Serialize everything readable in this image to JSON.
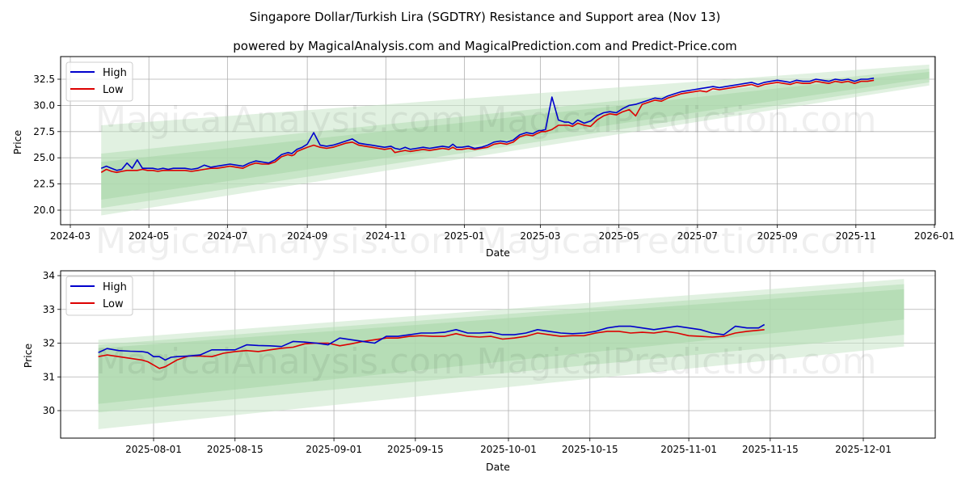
{
  "header": {
    "title": "Singapore Dollar/Turkish Lira (SGDTRY) Resistance and Support area (Nov 13)",
    "subtitle": "powered by MagicalAnalysis.com and MagicalPrediction.com and Predict-Price.com"
  },
  "watermarks": [
    "MagicalAnalysis.com",
    "MagicalPrediction.com"
  ],
  "colors": {
    "high": "#0000cc",
    "low": "#dd0000",
    "band_light": "#c8e6c8",
    "band_dark": "#a8d5a8",
    "grid": "#b0b0b0"
  },
  "chart_data": [
    {
      "type": "line",
      "title": "Singapore Dollar/Turkish Lira (SGDTRY) Resistance and Support area (Nov 13)",
      "xlabel": "Date",
      "ylabel": "Price",
      "ylim": [
        18.6,
        34.8
      ],
      "xlim": [
        "2024-02-24",
        "2026-01-02"
      ],
      "grid": true,
      "legend_position": "upper left",
      "legend": [
        "High",
        "Low"
      ],
      "yticks": [
        "20.0",
        "22.5",
        "25.0",
        "27.5",
        "30.0",
        "32.5"
      ],
      "ytick_values": [
        20.0,
        22.5,
        25.0,
        27.5,
        30.0,
        32.5
      ],
      "xticks": [
        "2024-03",
        "2024-05",
        "2024-07",
        "2024-09",
        "2024-11",
        "2025-01",
        "2025-03",
        "2025-05",
        "2025-07",
        "2025-09",
        "2025-11",
        "2026-01"
      ],
      "xtick_days": [
        6,
        67,
        128,
        190,
        251,
        312,
        371,
        432,
        493,
        555,
        616,
        677
      ],
      "x_unit": "days since 2024-02-24",
      "bands": [
        {
          "name": "outer",
          "x": [
            30,
            673
          ],
          "upper": [
            28.1,
            33.9
          ],
          "lower": [
            19.5,
            31.9
          ]
        },
        {
          "name": "mid",
          "x": [
            30,
            673
          ],
          "upper": [
            25.4,
            33.5
          ],
          "lower": [
            20.2,
            32.2
          ]
        },
        {
          "name": "inner",
          "x": [
            30,
            673
          ],
          "upper": [
            24.6,
            33.2
          ],
          "lower": [
            21.0,
            32.6
          ]
        }
      ],
      "series": [
        {
          "name": "High",
          "x": [
            30,
            34,
            38,
            42,
            46,
            50,
            54,
            58,
            62,
            66,
            70,
            74,
            78,
            82,
            86,
            90,
            95,
            100,
            105,
            110,
            115,
            120,
            125,
            130,
            135,
            140,
            145,
            150,
            155,
            160,
            165,
            170,
            175,
            178,
            180,
            182,
            186,
            190,
            195,
            200,
            205,
            210,
            215,
            220,
            225,
            230,
            235,
            240,
            245,
            250,
            255,
            258,
            262,
            266,
            270,
            275,
            280,
            285,
            290,
            295,
            300,
            303,
            306,
            310,
            315,
            320,
            325,
            330,
            335,
            340,
            345,
            350,
            355,
            360,
            365,
            368,
            370,
            372,
            375,
            380,
            385,
            390,
            393,
            396,
            400,
            405,
            410,
            415,
            420,
            425,
            430,
            435,
            440,
            445,
            450,
            455,
            460,
            465,
            470,
            475,
            480,
            485,
            490,
            495,
            500,
            505,
            510,
            515,
            520,
            525,
            530,
            535,
            540,
            545,
            550,
            555,
            560,
            565,
            570,
            575,
            580,
            585,
            590,
            595,
            600,
            605,
            610,
            615,
            620,
            625,
            630
          ],
          "values": [
            24.0,
            24.2,
            24.0,
            23.8,
            23.9,
            24.5,
            24.0,
            24.8,
            24.0,
            24.0,
            24.0,
            23.9,
            24.0,
            23.9,
            24.0,
            24.0,
            24.0,
            23.9,
            24.0,
            24.3,
            24.1,
            24.2,
            24.3,
            24.4,
            24.3,
            24.2,
            24.5,
            24.7,
            24.6,
            24.5,
            24.8,
            25.3,
            25.5,
            25.4,
            25.6,
            25.8,
            26.0,
            26.3,
            27.4,
            26.2,
            26.1,
            26.2,
            26.4,
            26.6,
            26.8,
            26.4,
            26.3,
            26.2,
            26.1,
            26.0,
            26.1,
            25.9,
            25.8,
            26.0,
            25.8,
            25.9,
            26.0,
            25.9,
            26.0,
            26.1,
            26.0,
            26.3,
            26.0,
            26.0,
            26.1,
            25.9,
            26.0,
            26.2,
            26.5,
            26.6,
            26.5,
            26.7,
            27.2,
            27.4,
            27.3,
            27.5,
            27.6,
            27.6,
            27.7,
            30.8,
            28.6,
            28.4,
            28.4,
            28.2,
            28.6,
            28.3,
            28.5,
            29.0,
            29.3,
            29.4,
            29.3,
            29.7,
            30.0,
            30.1,
            30.3,
            30.5,
            30.7,
            30.6,
            30.9,
            31.1,
            31.3,
            31.4,
            31.5,
            31.6,
            31.7,
            31.8,
            31.7,
            31.8,
            31.9,
            32.0,
            32.1,
            32.2,
            32.0,
            32.2,
            32.3,
            32.4,
            32.3,
            32.2,
            32.4,
            32.3,
            32.3,
            32.5,
            32.4,
            32.3,
            32.5,
            32.4,
            32.5,
            32.3,
            32.5,
            32.5,
            32.6
          ]
        },
        {
          "name": "Low",
          "x": [
            30,
            34,
            38,
            42,
            46,
            50,
            54,
            58,
            62,
            66,
            70,
            74,
            78,
            82,
            86,
            90,
            95,
            100,
            105,
            110,
            115,
            120,
            125,
            130,
            135,
            140,
            145,
            150,
            155,
            160,
            165,
            170,
            175,
            178,
            180,
            182,
            186,
            190,
            195,
            200,
            205,
            210,
            215,
            220,
            225,
            230,
            235,
            240,
            245,
            250,
            255,
            258,
            262,
            266,
            270,
            275,
            280,
            285,
            290,
            295,
            300,
            303,
            306,
            310,
            315,
            320,
            325,
            330,
            335,
            340,
            345,
            350,
            355,
            360,
            365,
            368,
            370,
            372,
            375,
            380,
            385,
            390,
            393,
            396,
            400,
            405,
            410,
            415,
            420,
            425,
            430,
            435,
            440,
            445,
            450,
            455,
            460,
            465,
            470,
            475,
            480,
            485,
            490,
            495,
            500,
            505,
            510,
            515,
            520,
            525,
            530,
            535,
            540,
            545,
            550,
            555,
            560,
            565,
            570,
            575,
            580,
            585,
            590,
            595,
            600,
            605,
            610,
            615,
            620,
            625,
            630
          ],
          "values": [
            23.6,
            23.9,
            23.7,
            23.6,
            23.7,
            23.8,
            23.8,
            23.8,
            23.9,
            23.8,
            23.8,
            23.7,
            23.8,
            23.8,
            23.8,
            23.8,
            23.8,
            23.7,
            23.8,
            23.9,
            24.0,
            24.0,
            24.1,
            24.2,
            24.1,
            24.0,
            24.3,
            24.5,
            24.4,
            24.4,
            24.6,
            25.1,
            25.3,
            25.2,
            25.3,
            25.6,
            25.8,
            26.0,
            26.2,
            26.0,
            25.9,
            26.0,
            26.2,
            26.4,
            26.5,
            26.2,
            26.1,
            26.0,
            25.9,
            25.8,
            25.9,
            25.5,
            25.6,
            25.7,
            25.6,
            25.7,
            25.8,
            25.7,
            25.8,
            25.9,
            25.8,
            26.0,
            25.8,
            25.8,
            25.9,
            25.8,
            25.9,
            26.0,
            26.3,
            26.4,
            26.3,
            26.5,
            27.0,
            27.2,
            27.1,
            27.3,
            27.4,
            27.5,
            27.5,
            27.7,
            28.1,
            28.1,
            28.1,
            28.0,
            28.3,
            28.1,
            28.0,
            28.6,
            29.0,
            29.2,
            29.1,
            29.4,
            29.6,
            29.0,
            30.1,
            30.3,
            30.5,
            30.4,
            30.7,
            30.9,
            31.1,
            31.2,
            31.3,
            31.4,
            31.3,
            31.6,
            31.5,
            31.6,
            31.7,
            31.8,
            31.9,
            32.0,
            31.8,
            32.0,
            32.1,
            32.2,
            32.1,
            32.0,
            32.2,
            32.1,
            32.1,
            32.3,
            32.2,
            32.1,
            32.3,
            32.2,
            32.3,
            32.1,
            32.3,
            32.3,
            32.4
          ]
        }
      ]
    },
    {
      "type": "line",
      "title": "",
      "xlabel": "Date",
      "ylabel": "Price",
      "ylim": [
        29.2,
        34.15
      ],
      "xlim": [
        "2025-07-16",
        "2025-12-09"
      ],
      "grid": true,
      "legend_position": "upper left",
      "legend": [
        "High",
        "Low"
      ],
      "yticks": [
        "30",
        "31",
        "32",
        "33",
        "34"
      ],
      "ytick_values": [
        30,
        31,
        32,
        33,
        34
      ],
      "xticks": [
        "2025-08-01",
        "2025-08-15",
        "2025-09-01",
        "2025-09-15",
        "2025-10-01",
        "2025-10-15",
        "2025-11-01",
        "2025-11-15",
        "2025-12-01"
      ],
      "xtick_days": [
        16,
        30,
        47,
        61,
        77,
        91,
        108,
        122,
        138
      ],
      "x_unit": "days since 2025-07-16",
      "bands": [
        {
          "name": "outer",
          "x": [
            6.5,
            145
          ],
          "upper": [
            32.1,
            33.9
          ],
          "lower": [
            29.45,
            31.9
          ]
        },
        {
          "name": "mid",
          "x": [
            6.5,
            145
          ],
          "upper": [
            31.95,
            33.75
          ],
          "lower": [
            29.95,
            32.25
          ]
        },
        {
          "name": "inner",
          "x": [
            6.5,
            145
          ],
          "upper": [
            31.85,
            33.6
          ],
          "lower": [
            30.2,
            32.7
          ]
        }
      ],
      "series": [
        {
          "name": "High",
          "x": [
            6.5,
            8,
            10,
            12,
            14,
            15,
            16,
            17,
            18,
            19,
            20,
            22,
            24,
            26,
            28,
            30,
            32,
            34,
            36,
            38,
            40,
            42,
            44,
            46,
            48,
            50,
            52,
            54,
            56,
            58,
            60,
            62,
            64,
            66,
            68,
            70,
            72,
            74,
            76,
            78,
            80,
            82,
            84,
            86,
            88,
            90,
            92,
            94,
            96,
            98,
            100,
            102,
            104,
            106,
            108,
            110,
            112,
            114,
            116,
            118,
            120,
            121
          ],
          "values": [
            31.72,
            31.84,
            31.78,
            31.76,
            31.75,
            31.72,
            31.6,
            31.6,
            31.5,
            31.58,
            31.6,
            31.62,
            31.65,
            31.8,
            31.8,
            31.8,
            31.95,
            31.93,
            31.92,
            31.9,
            32.05,
            32.03,
            32.0,
            31.95,
            32.15,
            32.1,
            32.05,
            32.0,
            32.2,
            32.2,
            32.25,
            32.3,
            32.3,
            32.32,
            32.4,
            32.3,
            32.3,
            32.32,
            32.25,
            32.25,
            32.3,
            32.4,
            32.35,
            32.3,
            32.28,
            32.3,
            32.35,
            32.45,
            32.5,
            32.5,
            32.45,
            32.4,
            32.45,
            32.5,
            32.45,
            32.4,
            32.3,
            32.25,
            32.5,
            32.45,
            32.45,
            32.55
          ]
        },
        {
          "name": "Low",
          "x": [
            6.5,
            8,
            10,
            12,
            14,
            15,
            16,
            17,
            18,
            19,
            20,
            22,
            24,
            26,
            28,
            30,
            32,
            34,
            36,
            38,
            40,
            42,
            44,
            46,
            48,
            50,
            52,
            54,
            56,
            58,
            60,
            62,
            64,
            66,
            68,
            70,
            72,
            74,
            76,
            78,
            80,
            82,
            84,
            86,
            88,
            90,
            92,
            94,
            96,
            98,
            100,
            102,
            104,
            106,
            108,
            110,
            112,
            114,
            116,
            118,
            120,
            121
          ],
          "values": [
            31.6,
            31.65,
            31.6,
            31.55,
            31.5,
            31.45,
            31.35,
            31.25,
            31.3,
            31.4,
            31.5,
            31.62,
            31.62,
            31.6,
            31.7,
            31.75,
            31.78,
            31.75,
            31.8,
            31.85,
            31.88,
            31.98,
            32.0,
            32.0,
            31.92,
            31.98,
            32.05,
            32.1,
            32.15,
            32.15,
            32.2,
            32.22,
            32.2,
            32.2,
            32.28,
            32.2,
            32.18,
            32.2,
            32.12,
            32.15,
            32.2,
            32.3,
            32.25,
            32.2,
            32.22,
            32.22,
            32.3,
            32.35,
            32.35,
            32.3,
            32.32,
            32.3,
            32.35,
            32.3,
            32.22,
            32.2,
            32.18,
            32.2,
            32.3,
            32.35,
            32.38,
            32.4
          ]
        }
      ]
    }
  ]
}
